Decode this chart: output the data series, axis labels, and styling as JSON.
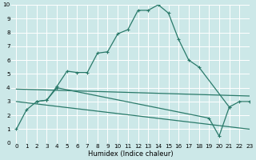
{
  "xlabel": "Humidex (Indice chaleur)",
  "xlim": [
    -0.5,
    23
  ],
  "ylim": [
    0,
    10
  ],
  "bg_color": "#cce8e8",
  "grid_color": "#ffffff",
  "line_color": "#2a7a6a",
  "line_width": 0.9,
  "marker_size": 3.0,
  "xlabel_fontsize": 6.0,
  "tick_fontsize": 5.2,
  "series": [
    {
      "x": [
        0,
        1,
        2,
        3,
        4,
        5,
        6,
        7,
        8,
        9,
        10,
        11,
        12,
        13,
        14,
        15,
        16,
        17,
        18,
        21,
        22,
        23
      ],
      "y": [
        1.0,
        2.4,
        3.0,
        3.1,
        4.1,
        5.2,
        5.1,
        5.1,
        6.5,
        6.6,
        7.9,
        8.2,
        9.6,
        9.6,
        10.0,
        9.4,
        7.5,
        6.0,
        5.5,
        2.6,
        3.0,
        3.0
      ],
      "has_markers": true
    },
    {
      "x": [
        2,
        3,
        4,
        19,
        20,
        21
      ],
      "y": [
        3.0,
        3.1,
        4.0,
        1.8,
        0.5,
        2.6
      ],
      "has_markers": true
    },
    {
      "x": [
        0,
        23
      ],
      "y": [
        3.9,
        3.4
      ],
      "has_markers": false
    },
    {
      "x": [
        0,
        23
      ],
      "y": [
        3.0,
        1.0
      ],
      "has_markers": false
    }
  ]
}
